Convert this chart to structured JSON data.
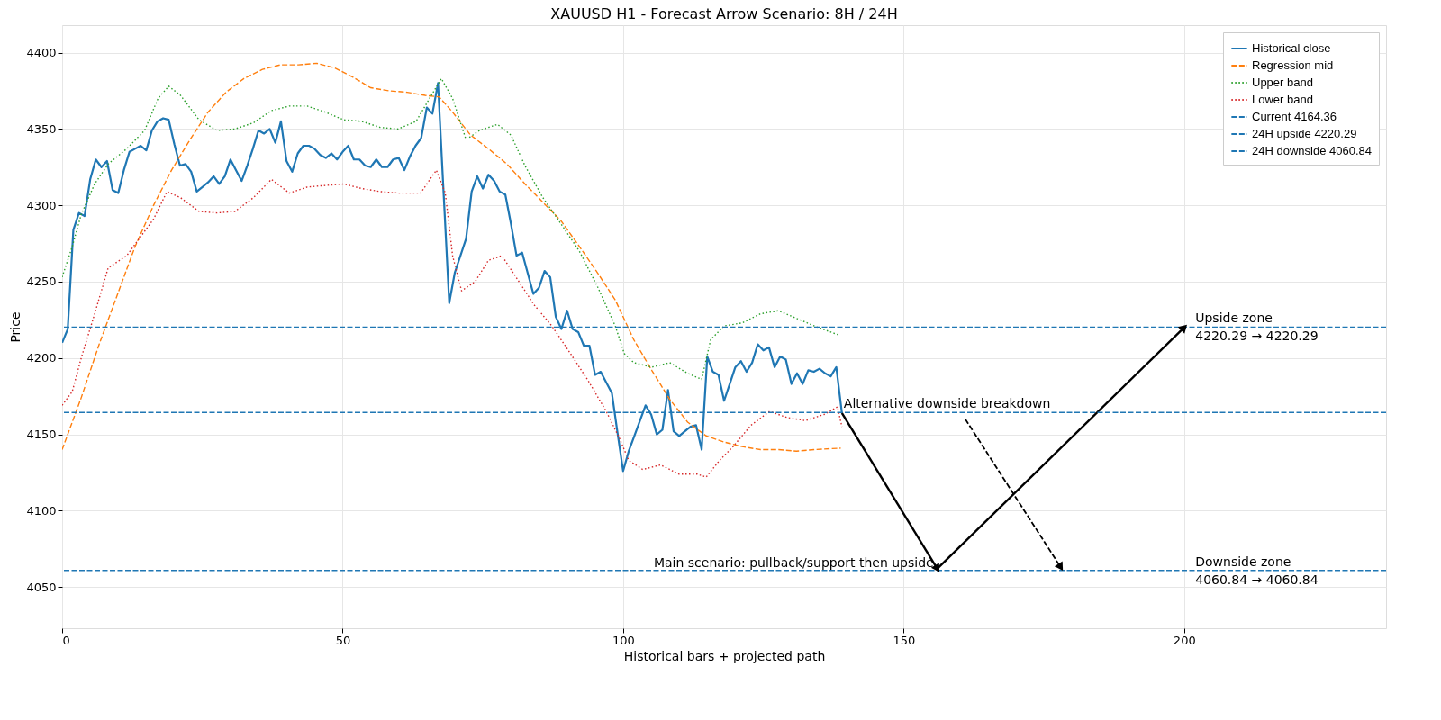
{
  "chart_data": {
    "type": "line",
    "title": "XAUUSD H1 - Forecast Arrow Scenario: 8H / 24H",
    "xlabel": "Historical bars + projected path",
    "ylabel": "Price",
    "xlim": [
      0,
      236
    ],
    "ylim": [
      4023,
      4418
    ],
    "xticks": [
      0,
      50,
      100,
      150,
      200
    ],
    "yticks": [
      4050,
      4100,
      4150,
      4200,
      4250,
      4300,
      4350,
      4400
    ],
    "grid": true,
    "legend": "top right",
    "series": [
      {
        "name": "Historical close",
        "color": "#1f77b4",
        "line_style": "solid",
        "x": [
          0,
          1,
          2,
          3,
          4,
          5,
          6,
          7,
          8,
          9,
          10,
          11,
          12,
          13,
          14,
          15,
          16,
          17,
          18,
          19,
          20,
          21,
          22,
          23,
          24,
          25,
          26,
          27,
          28,
          29,
          30,
          31,
          32,
          33,
          34,
          35,
          36,
          37,
          38,
          39,
          40,
          41,
          42,
          43,
          44,
          45,
          46,
          47,
          48,
          49,
          50,
          51,
          52,
          53,
          54,
          55,
          56,
          57,
          58,
          59,
          60,
          61,
          62,
          63,
          64,
          65,
          66,
          67,
          68,
          69,
          70,
          72,
          73,
          74,
          75,
          76,
          77,
          78,
          79,
          80,
          81,
          82,
          84,
          85,
          86,
          87,
          88,
          89,
          90,
          91,
          92,
          93,
          94,
          95,
          96,
          97,
          98,
          99,
          100,
          101,
          102,
          103,
          104,
          105,
          106,
          107,
          108,
          109,
          110,
          111,
          112,
          113,
          114,
          115,
          116,
          117,
          118,
          119,
          120,
          121,
          122,
          123,
          124,
          125,
          126,
          127,
          128,
          129,
          130,
          131,
          132,
          133,
          134,
          135,
          136,
          137,
          138,
          139
        ],
        "values": [
          4210,
          4219,
          4284,
          4295,
          4293,
          4317,
          4330,
          4325,
          4329,
          4310,
          4308,
          4323,
          4335,
          4337,
          4339,
          4336,
          4349,
          4355,
          4357,
          4356,
          4340,
          4326,
          4327,
          4322,
          4309,
          4312,
          4315,
          4319,
          4314,
          4319,
          4330,
          4323,
          4316,
          4326,
          4337,
          4349,
          4347,
          4350,
          4341,
          4355,
          4329,
          4322,
          4334,
          4339,
          4339,
          4337,
          4333,
          4331,
          4334,
          4330,
          4335,
          4339,
          4330,
          4330,
          4326,
          4325,
          4330,
          4325,
          4325,
          4330,
          4331,
          4323,
          4332,
          4339,
          4344,
          4364,
          4360,
          4380,
          4308,
          4236,
          4256,
          4278,
          4309,
          4319,
          4311,
          4320,
          4316,
          4309,
          4307,
          4288,
          4267,
          4269,
          4242,
          4246,
          4257,
          4253,
          4227,
          4219,
          4231,
          4219,
          4217,
          4208,
          4208,
          4189,
          4191,
          4184,
          4177,
          4151,
          4126,
          4139,
          4149,
          4159,
          4169,
          4163,
          4150,
          4153,
          4179,
          4152,
          4149,
          4152,
          4155,
          4156,
          4140,
          4201,
          4191,
          4189,
          4172,
          4183,
          4194,
          4198,
          4191,
          4197,
          4209,
          4205,
          4207,
          4194,
          4201,
          4199,
          4183,
          4190,
          4183,
          4192,
          4191,
          4193,
          4190,
          4188,
          4194,
          4164
        ]
      },
      {
        "name": "Regression mid",
        "color": "#ff7f0e",
        "line_style": "dashed",
        "x": [
          0,
          3.4,
          6.6,
          9.8,
          13,
          16.3,
          19.5,
          22.8,
          26,
          29.2,
          32.4,
          35.7,
          38.9,
          42.1,
          45.4,
          48.6,
          51.8,
          55,
          58.3,
          61.5,
          64.7,
          67.2,
          69.6,
          72.8,
          76,
          79.3,
          82.5,
          85.7,
          88.9,
          92.2,
          95.4,
          98.6,
          101.9,
          105.1,
          108.3,
          111.5,
          114.8,
          118,
          121.2,
          124.5,
          127.7,
          130.9,
          134.1,
          138.8
        ],
        "values": [
          4140,
          4174,
          4209,
          4241,
          4273,
          4300,
          4323,
          4343,
          4361,
          4374,
          4383,
          4389,
          4392,
          4392,
          4393,
          4390,
          4384,
          4377,
          4375,
          4374,
          4372,
          4371,
          4361,
          4346,
          4337,
          4327,
          4314,
          4302,
          4290,
          4273,
          4256,
          4238,
          4212,
          4192,
          4173,
          4158,
          4149,
          4145,
          4142,
          4140,
          4140,
          4139,
          4140,
          4141
        ]
      },
      {
        "name": "Upper band",
        "color": "#2ca02c",
        "line_style": "dotted",
        "x": [
          0,
          1.8,
          3.4,
          5.8,
          8.2,
          11.5,
          14.7,
          17.1,
          19,
          21.1,
          24.4,
          27.6,
          30.8,
          34.1,
          37.3,
          40.5,
          43.7,
          46.9,
          50.2,
          53.4,
          56.7,
          59.9,
          63.1,
          65.5,
          67.6,
          69.6,
          72,
          74.4,
          77.6,
          80,
          82.5,
          85.7,
          88.9,
          92.2,
          95.4,
          98.6,
          100.2,
          101.9,
          105.1,
          108.3,
          111.5,
          114,
          115.6,
          118,
          121.2,
          124.5,
          127.7,
          130.9,
          134.1,
          138.5
        ],
        "values": [
          4253,
          4273,
          4294,
          4314,
          4327,
          4337,
          4349,
          4370,
          4378,
          4372,
          4356,
          4349,
          4350,
          4354,
          4362,
          4365,
          4365,
          4361,
          4356,
          4355,
          4351,
          4350,
          4355,
          4370,
          4383,
          4370,
          4343,
          4349,
          4353,
          4346,
          4326,
          4305,
          4288,
          4270,
          4247,
          4221,
          4203,
          4197,
          4194,
          4197,
          4190,
          4186,
          4212,
          4221,
          4223,
          4229,
          4231,
          4226,
          4221,
          4215
        ]
      },
      {
        "name": "Lower band",
        "color": "#d62728",
        "line_style": "dotted",
        "x": [
          0,
          1.8,
          3.4,
          5.8,
          8.2,
          11.5,
          13.9,
          16.3,
          18.7,
          21.1,
          24.4,
          27.6,
          30.8,
          34.1,
          37.3,
          40.5,
          43.7,
          46.9,
          50.2,
          53.4,
          56.7,
          59.9,
          63.9,
          66.7,
          68.3,
          69.6,
          71.2,
          73.6,
          76,
          78.4,
          80.9,
          84.1,
          87.3,
          90.6,
          93.8,
          97,
          99.4,
          101,
          103.5,
          106.7,
          109.9,
          113.2,
          114.8,
          117.2,
          119.6,
          122.8,
          126.1,
          129.3,
          132.5,
          135.8,
          138.2,
          139
        ],
        "values": [
          4169,
          4178,
          4200,
          4229,
          4259,
          4267,
          4279,
          4291,
          4309,
          4305,
          4296,
          4295,
          4296,
          4305,
          4317,
          4308,
          4312,
          4313,
          4314,
          4311,
          4309,
          4308,
          4308,
          4323,
          4308,
          4267,
          4244,
          4250,
          4264,
          4267,
          4253,
          4235,
          4221,
          4203,
          4185,
          4165,
          4147,
          4133,
          4127,
          4130,
          4124,
          4124,
          4122,
          4133,
          4142,
          4156,
          4165,
          4161,
          4159,
          4163,
          4168,
          4155
        ]
      },
      {
        "color": "#000000",
        "line_style": "solid",
        "x": [
          139,
          156
        ],
        "values": [
          4164,
          4062
        ]
      },
      {
        "color": "#000000",
        "line_style": "solid",
        "x": [
          156,
          200
        ],
        "values": [
          4062,
          4220
        ]
      },
      {
        "color": "#000000",
        "line_style": "dashed",
        "x": [
          161,
          178
        ],
        "values": [
          4160,
          4063
        ]
      }
    ],
    "ref_lines": [
      {
        "axis": "y",
        "value": 4164.36,
        "label": "Current 4164.36",
        "color": "#1f77b4",
        "line_style": "dashed"
      },
      {
        "axis": "y",
        "value": 4220.29,
        "label": "24H upside 4220.29",
        "color": "#1f77b4",
        "line_style": "dashed"
      },
      {
        "axis": "y",
        "value": 4060.84,
        "label": "24H downside 4060.84",
        "color": "#1f77b4",
        "line_style": "dashed"
      }
    ],
    "annotations": [
      {
        "text": "Alternative downside breakdown",
        "x": 139,
        "y": 4164.36
      },
      {
        "text": "Main scenario: pullback/support then upside",
        "x": 156,
        "y": 4060.84
      },
      {
        "text": "Upside zone\n4220.29 → 4220.29",
        "x": 202,
        "y": 4220.29
      },
      {
        "text": "Downside zone\n4060.84 → 4060.84",
        "x": 202,
        "y": 4060.84
      }
    ]
  }
}
